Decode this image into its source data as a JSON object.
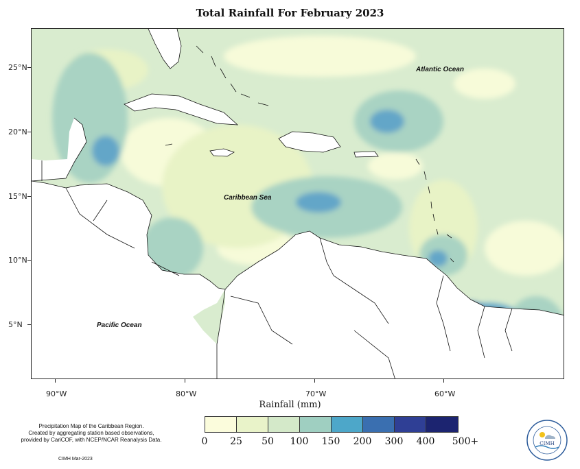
{
  "title": "Total Rainfall For February 2023",
  "x_axis_title": "Rainfall (mm)",
  "lat_labels": [
    "25°N",
    "20°N",
    "15°N",
    "10°N",
    "5°N"
  ],
  "lon_labels": [
    "90°W",
    "80°W",
    "70°W",
    "60°W"
  ],
  "region_labels": {
    "atlantic": "Atlantic Ocean",
    "caribbean": "Caribbean Sea",
    "pacific": "Pacific Ocean"
  },
  "legend": {
    "breaks": [
      "0",
      "25",
      "50",
      "100",
      "150",
      "200",
      "300",
      "400",
      "500+"
    ],
    "colors": [
      "#fbfcdc",
      "#e9f3c9",
      "#d4e9c9",
      "#9fcfc1",
      "#4da7c9",
      "#3a6fb0",
      "#2f3f95",
      "#1c2470"
    ]
  },
  "map_colors": {
    "ocean_base": "#d9eccf",
    "very_light": "#f7fbd9",
    "light": "#e8f3c6",
    "teal": "#a9d3c3",
    "blue": "#63a6c8",
    "mid_blue": "#4071ad",
    "dark_blue": "#2d3e88",
    "darkest": "#1e2552",
    "land": "#ffffff"
  },
  "credits": {
    "line1": "Precipitation Map of the Caribbean Region.",
    "line2": "Created by aggregating station based observations,",
    "line3": "provided by CariCOF, with NCEP/NCAR Reanalysis Data.",
    "date": "CIMH Mar-2023"
  },
  "logo": {
    "text": "CIMH"
  }
}
